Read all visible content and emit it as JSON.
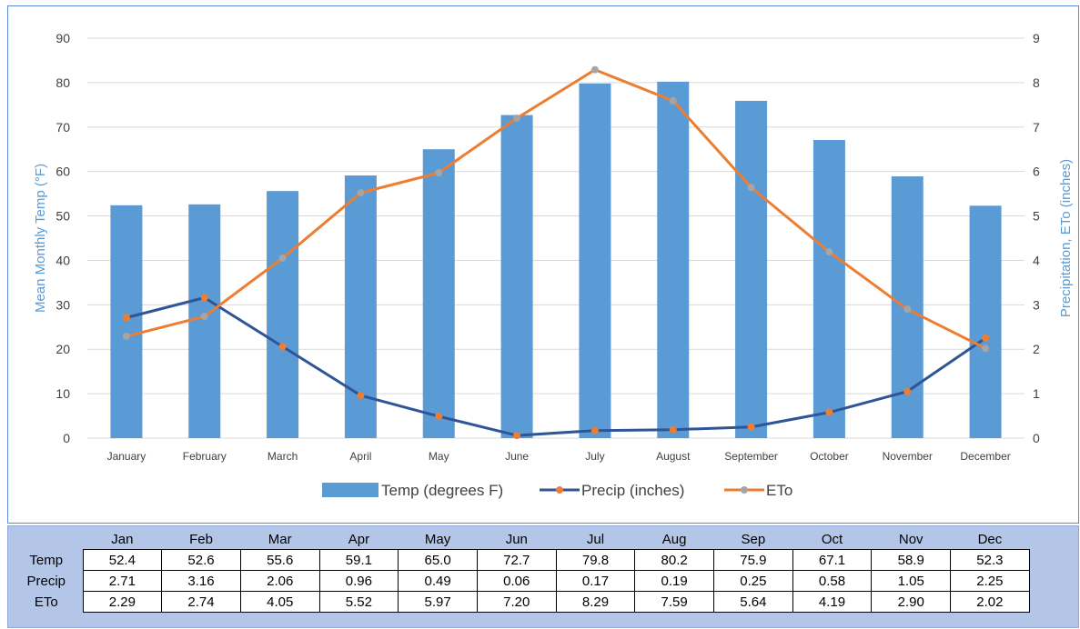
{
  "chart_data": {
    "type": "bar",
    "categories": [
      "January",
      "February",
      "March",
      "April",
      "May",
      "June",
      "July",
      "August",
      "September",
      "October",
      "November",
      "December"
    ],
    "series": [
      {
        "name": "Temp (degrees F)",
        "type": "bar",
        "axis": "left",
        "color": "#5b9bd5",
        "values": [
          52.4,
          52.6,
          55.6,
          59.1,
          65.0,
          72.7,
          79.8,
          80.2,
          75.9,
          67.1,
          58.9,
          52.3
        ]
      },
      {
        "name": "Precip (inches)",
        "type": "line",
        "axis": "right",
        "color": "#2f5597",
        "marker_color": "#ed7d31",
        "values": [
          2.71,
          3.16,
          2.06,
          0.96,
          0.49,
          0.06,
          0.17,
          0.19,
          0.25,
          0.58,
          1.05,
          2.25
        ]
      },
      {
        "name": "ETo",
        "type": "line",
        "axis": "right",
        "color": "#ed7d31",
        "marker_color": "#a5a5a5",
        "values": [
          2.29,
          2.74,
          4.05,
          5.52,
          5.97,
          7.2,
          8.29,
          7.59,
          5.64,
          4.19,
          2.9,
          2.02
        ]
      }
    ],
    "ylabel": "Mean Monthly Temp (°F)",
    "y2label": "Precipitation, ETo (inches)",
    "ylim": [
      0,
      90
    ],
    "y2lim": [
      0,
      9
    ],
    "yticks": [
      "0",
      "10",
      "20",
      "30",
      "40",
      "50",
      "60",
      "70",
      "80",
      "90"
    ],
    "y2ticks": [
      "0",
      "1",
      "2",
      "3",
      "4",
      "5",
      "6",
      "7",
      "8",
      "9"
    ],
    "grid": true,
    "legend_position": "bottom"
  },
  "table": {
    "months": [
      "Jan",
      "Feb",
      "Mar",
      "Apr",
      "May",
      "Jun",
      "Jul",
      "Aug",
      "Sep",
      "Oct",
      "Nov",
      "Dec"
    ],
    "rows": [
      {
        "label": "Temp",
        "values": [
          "52.4",
          "52.6",
          "55.6",
          "59.1",
          "65.0",
          "72.7",
          "79.8",
          "80.2",
          "75.9",
          "67.1",
          "58.9",
          "52.3"
        ]
      },
      {
        "label": "Precip",
        "values": [
          "2.71",
          "3.16",
          "2.06",
          "0.96",
          "0.49",
          "0.06",
          "0.17",
          "0.19",
          "0.25",
          "0.58",
          "1.05",
          "2.25"
        ]
      },
      {
        "label": "ETo",
        "values": [
          "2.29",
          "2.74",
          "4.05",
          "5.52",
          "5.97",
          "7.20",
          "8.29",
          "7.59",
          "5.64",
          "4.19",
          "2.90",
          "2.02"
        ]
      }
    ]
  }
}
